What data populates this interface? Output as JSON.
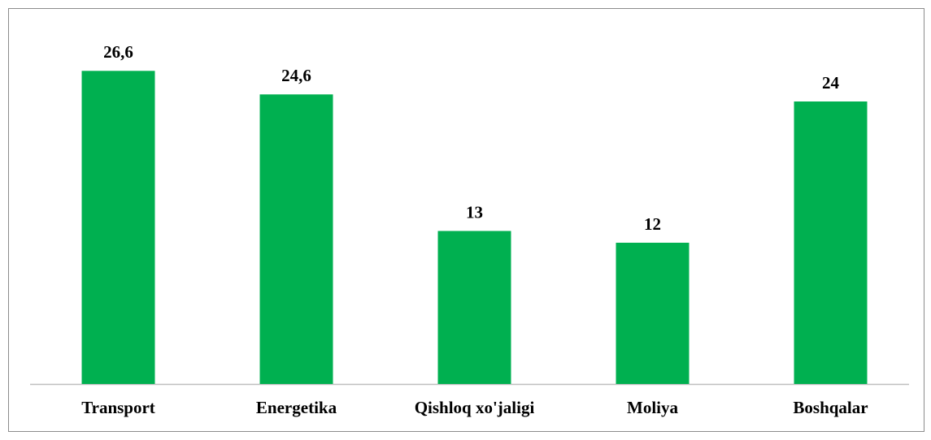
{
  "chart_data": {
    "type": "bar",
    "categories": [
      "Transport",
      "Energetika",
      "Qishloq xo'jaligi",
      "Moliya",
      "Boshqalar"
    ],
    "values": [
      26.6,
      24.6,
      13,
      12,
      24
    ],
    "value_labels": [
      "26,6",
      "24,6",
      "13",
      "12",
      "24"
    ],
    "color": "#00b050"
  }
}
